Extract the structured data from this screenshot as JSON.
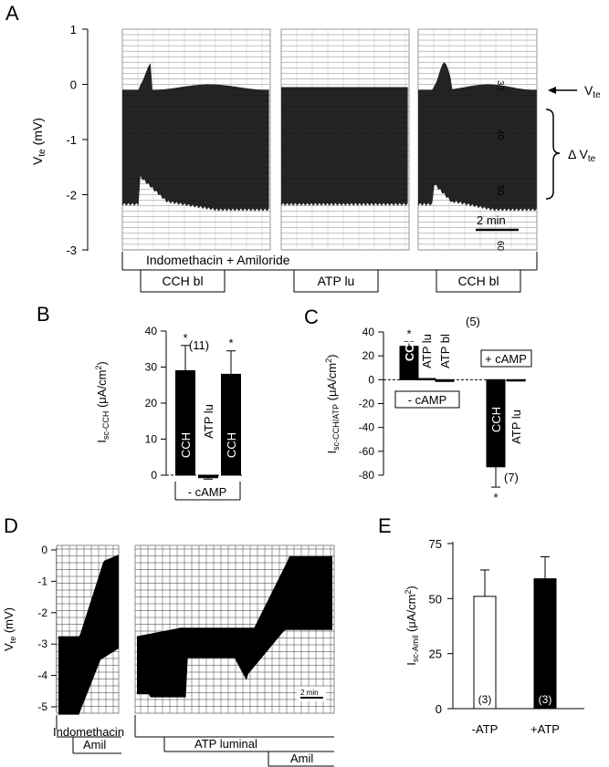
{
  "panels": {
    "A": {
      "label": "A",
      "y_ticks": [
        "1",
        "0",
        "-1",
        "-2",
        "-3"
      ],
      "ylabel_main": "V",
      "ylabel_sub": "te",
      "ylabel_unit": " (mV)",
      "vte_main": "V",
      "vte_sub": "te",
      "dvte_main": "Δ V",
      "dvte_sub": "te",
      "scale_label": "2 min",
      "paper_marks": [
        "30",
        "40",
        "50",
        "60"
      ],
      "bar_main": "Indomethacin + Amiloride",
      "segments": [
        "CCH bl",
        "ATP lu",
        "CCH bl"
      ]
    },
    "B": {
      "label": "B",
      "ylabel_main": "I",
      "ylabel_sub": "sc-CCH",
      "ylabel_unit": " (μA/cm",
      "ylabel_sup": "2",
      "ylabel_close": ")",
      "y_ticks": [
        "40",
        "30",
        "20",
        "10",
        "0"
      ],
      "n_label": "(11)",
      "star": "*",
      "condition": "- cAMP"
    },
    "C": {
      "label": "C",
      "ylabel_main": "I",
      "ylabel_sub": "sc-CCH/ATP",
      "ylabel_unit": " (μA/cm",
      "ylabel_sup": "2",
      "ylabel_close": ")",
      "y_ticks": [
        "40",
        "20",
        "0",
        "-20",
        "-40",
        "-60",
        "-80"
      ],
      "n_top": "(5)",
      "n_bottom": "(7)",
      "star": "*",
      "minus_camp": "- cAMP",
      "plus_camp": "+ cAMP"
    },
    "D": {
      "label": "D",
      "y_ticks": [
        "0",
        "-1",
        "-2",
        "-3",
        "-4",
        "-5"
      ],
      "ylabel_main": "V",
      "ylabel_sub": "te",
      "ylabel_unit": " (mV)",
      "scale_label": "2 min",
      "left_labels": [
        "Indomethacin",
        "Amil"
      ],
      "right_labels": [
        "ATP luminal",
        "Amil"
      ]
    },
    "E": {
      "label": "E",
      "ylabel_main": "I",
      "ylabel_sub": "sc-Amil",
      "ylabel_unit": " (μA/cm",
      "ylabel_sup": "2",
      "ylabel_close": ")",
      "y_ticks": [
        "75",
        "50",
        "25",
        "0"
      ]
    }
  },
  "chart_data": [
    {
      "panel": "B",
      "type": "bar",
      "categories": [
        "CCH",
        "ATP lu",
        "CCH"
      ],
      "values": [
        29,
        -0.7,
        28
      ],
      "errors": [
        7,
        0.4,
        6.5
      ],
      "significant": [
        true,
        false,
        true
      ],
      "ylim": [
        0,
        40
      ],
      "colors": [
        "#000000",
        "#000000",
        "#000000"
      ]
    },
    {
      "panel": "C",
      "type": "bar",
      "categories": [
        "CCH",
        "ATP lu",
        "ATP bl",
        "CCH",
        "ATP lu"
      ],
      "values": [
        28,
        1,
        -1.5,
        -73,
        -1
      ],
      "errors": [
        4,
        0,
        0,
        17,
        0
      ],
      "significant": [
        true,
        false,
        false,
        true,
        false
      ],
      "ylim": [
        -80,
        40
      ]
    },
    {
      "panel": "E",
      "type": "bar",
      "categories": [
        "-ATP",
        "+ATP"
      ],
      "values": [
        51,
        59
      ],
      "errors": [
        12,
        10
      ],
      "n": [
        "(3)",
        "(3)"
      ],
      "fills": [
        "#ffffff",
        "#000000"
      ],
      "ylim": [
        0,
        75
      ]
    }
  ]
}
